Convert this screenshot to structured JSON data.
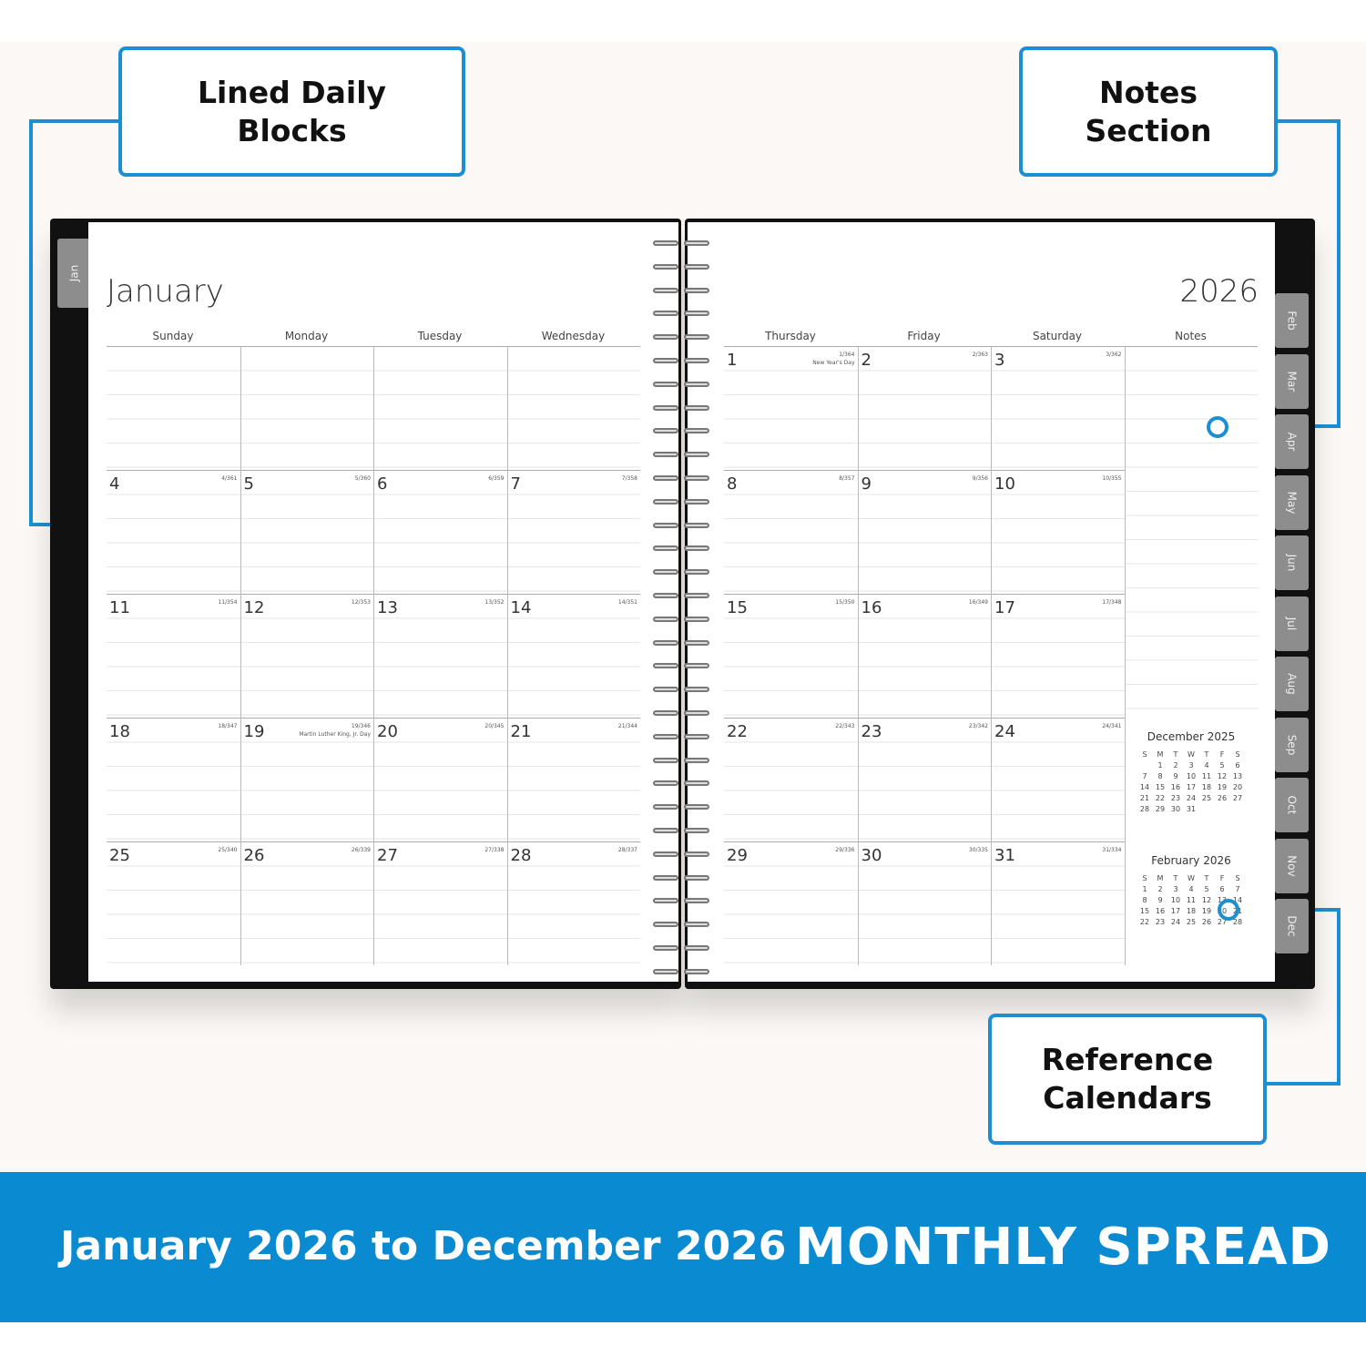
{
  "callouts": {
    "lined": "Lined Daily Blocks",
    "notes": "Notes Section",
    "reference": "Reference Calendars"
  },
  "banner": {
    "range": "January 2026 to December 2026",
    "title": "MONTHLY SPREAD"
  },
  "accent": "#1b8fd2",
  "banner_color": "#0a8ad0",
  "left_page": {
    "month": "January",
    "tab": "Jan",
    "weekdays": [
      "Sunday",
      "Monday",
      "Tuesday",
      "Wednesday"
    ],
    "weeks": [
      [
        null,
        null,
        null,
        null
      ],
      [
        {
          "d": "4",
          "c": "4/361"
        },
        {
          "d": "5",
          "c": "5/360"
        },
        {
          "d": "6",
          "c": "6/359"
        },
        {
          "d": "7",
          "c": "7/358"
        }
      ],
      [
        {
          "d": "11",
          "c": "11/354"
        },
        {
          "d": "12",
          "c": "12/353"
        },
        {
          "d": "13",
          "c": "13/352"
        },
        {
          "d": "14",
          "c": "14/351"
        }
      ],
      [
        {
          "d": "18",
          "c": "18/347"
        },
        {
          "d": "19",
          "c": "19/346",
          "h": "Martin Luther King, Jr. Day"
        },
        {
          "d": "20",
          "c": "20/345"
        },
        {
          "d": "21",
          "c": "21/344"
        }
      ],
      [
        {
          "d": "25",
          "c": "25/340"
        },
        {
          "d": "26",
          "c": "26/339"
        },
        {
          "d": "27",
          "c": "27/338"
        },
        {
          "d": "28",
          "c": "28/337"
        }
      ]
    ]
  },
  "right_page": {
    "year": "2026",
    "weekdays": [
      "Thursday",
      "Friday",
      "Saturday",
      "Notes"
    ],
    "weeks": [
      [
        {
          "d": "1",
          "c": "1/364",
          "h": "New Year's Day"
        },
        {
          "d": "2",
          "c": "2/363"
        },
        {
          "d": "3",
          "c": "3/362"
        }
      ],
      [
        {
          "d": "8",
          "c": "8/357"
        },
        {
          "d": "9",
          "c": "9/356"
        },
        {
          "d": "10",
          "c": "10/355"
        }
      ],
      [
        {
          "d": "15",
          "c": "15/350"
        },
        {
          "d": "16",
          "c": "16/349"
        },
        {
          "d": "17",
          "c": "17/348"
        }
      ],
      [
        {
          "d": "22",
          "c": "22/343"
        },
        {
          "d": "23",
          "c": "23/342"
        },
        {
          "d": "24",
          "c": "24/341"
        }
      ],
      [
        {
          "d": "29",
          "c": "29/336"
        },
        {
          "d": "30",
          "c": "30/335"
        },
        {
          "d": "31",
          "c": "31/334"
        }
      ]
    ],
    "tabs": [
      "Feb",
      "Mar",
      "Apr",
      "May",
      "Jun",
      "Jul",
      "Aug",
      "Sep",
      "Oct",
      "Nov",
      "Dec"
    ],
    "mini_calendars": [
      {
        "title": "December 2025",
        "head": [
          "S",
          "M",
          "T",
          "W",
          "T",
          "F",
          "S"
        ],
        "rows": [
          [
            "",
            "1",
            "2",
            "3",
            "4",
            "5",
            "6"
          ],
          [
            "7",
            "8",
            "9",
            "10",
            "11",
            "12",
            "13"
          ],
          [
            "14",
            "15",
            "16",
            "17",
            "18",
            "19",
            "20"
          ],
          [
            "21",
            "22",
            "23",
            "24",
            "25",
            "26",
            "27"
          ],
          [
            "28",
            "29",
            "30",
            "31",
            "",
            "",
            ""
          ]
        ]
      },
      {
        "title": "February 2026",
        "head": [
          "S",
          "M",
          "T",
          "W",
          "T",
          "F",
          "S"
        ],
        "rows": [
          [
            "1",
            "2",
            "3",
            "4",
            "5",
            "6",
            "7"
          ],
          [
            "8",
            "9",
            "10",
            "11",
            "12",
            "13",
            "14"
          ],
          [
            "15",
            "16",
            "17",
            "18",
            "19",
            "20",
            "21"
          ],
          [
            "22",
            "23",
            "24",
            "25",
            "26",
            "27",
            "28"
          ]
        ]
      }
    ]
  }
}
